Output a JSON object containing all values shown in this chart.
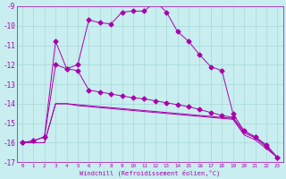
{
  "x": [
    0,
    1,
    2,
    3,
    4,
    5,
    6,
    7,
    8,
    9,
    10,
    11,
    12,
    13,
    14,
    15,
    16,
    17,
    18,
    19,
    20,
    21,
    22,
    23
  ],
  "line1": [
    -16.0,
    -15.9,
    -15.7,
    -10.8,
    -12.2,
    -12.0,
    -9.7,
    -9.85,
    -9.9,
    -9.3,
    -9.25,
    -9.25,
    -8.75,
    -9.3,
    -10.3,
    -10.8,
    -11.5,
    -12.1,
    -12.3,
    -14.5,
    -15.4,
    -15.7,
    -16.2,
    -16.75
  ],
  "line2": [
    -16.0,
    -15.9,
    -15.7,
    -12.0,
    -12.2,
    -12.3,
    -13.3,
    -13.4,
    -13.5,
    -13.6,
    -13.7,
    -13.75,
    -13.85,
    -13.95,
    -14.05,
    -14.15,
    -14.3,
    -14.45,
    -14.6,
    -14.7,
    -15.4,
    -15.7,
    -16.1,
    -16.75
  ],
  "line3": [
    -16.0,
    -16.0,
    -16.0,
    -14.0,
    -14.0,
    -14.05,
    -14.1,
    -14.15,
    -14.2,
    -14.25,
    -14.3,
    -14.35,
    -14.4,
    -14.45,
    -14.5,
    -14.55,
    -14.6,
    -14.65,
    -14.7,
    -14.75,
    -15.5,
    -15.75,
    -16.2,
    -16.75
  ],
  "line4": [
    -16.0,
    -16.0,
    -16.0,
    -14.0,
    -14.0,
    -14.1,
    -14.15,
    -14.2,
    -14.25,
    -14.3,
    -14.35,
    -14.4,
    -14.45,
    -14.5,
    -14.55,
    -14.6,
    -14.65,
    -14.7,
    -14.75,
    -14.8,
    -15.6,
    -15.85,
    -16.3,
    -16.75
  ],
  "line_color": "#aa00aa",
  "bg_color": "#c8eef0",
  "grid_color": "#a8d8d8",
  "xlabel": "Windchill (Refroidissement éolien,°C)",
  "ylim": [
    -17,
    -9
  ],
  "xlim": [
    -0.5,
    23.5
  ],
  "yticks": [
    -17,
    -16,
    -15,
    -14,
    -13,
    -12,
    -11,
    -10,
    -9
  ],
  "xticks": [
    0,
    1,
    2,
    3,
    4,
    5,
    6,
    7,
    8,
    9,
    10,
    11,
    12,
    13,
    14,
    15,
    16,
    17,
    18,
    19,
    20,
    21,
    22,
    23
  ],
  "marker": "D",
  "markersize": 2.5
}
